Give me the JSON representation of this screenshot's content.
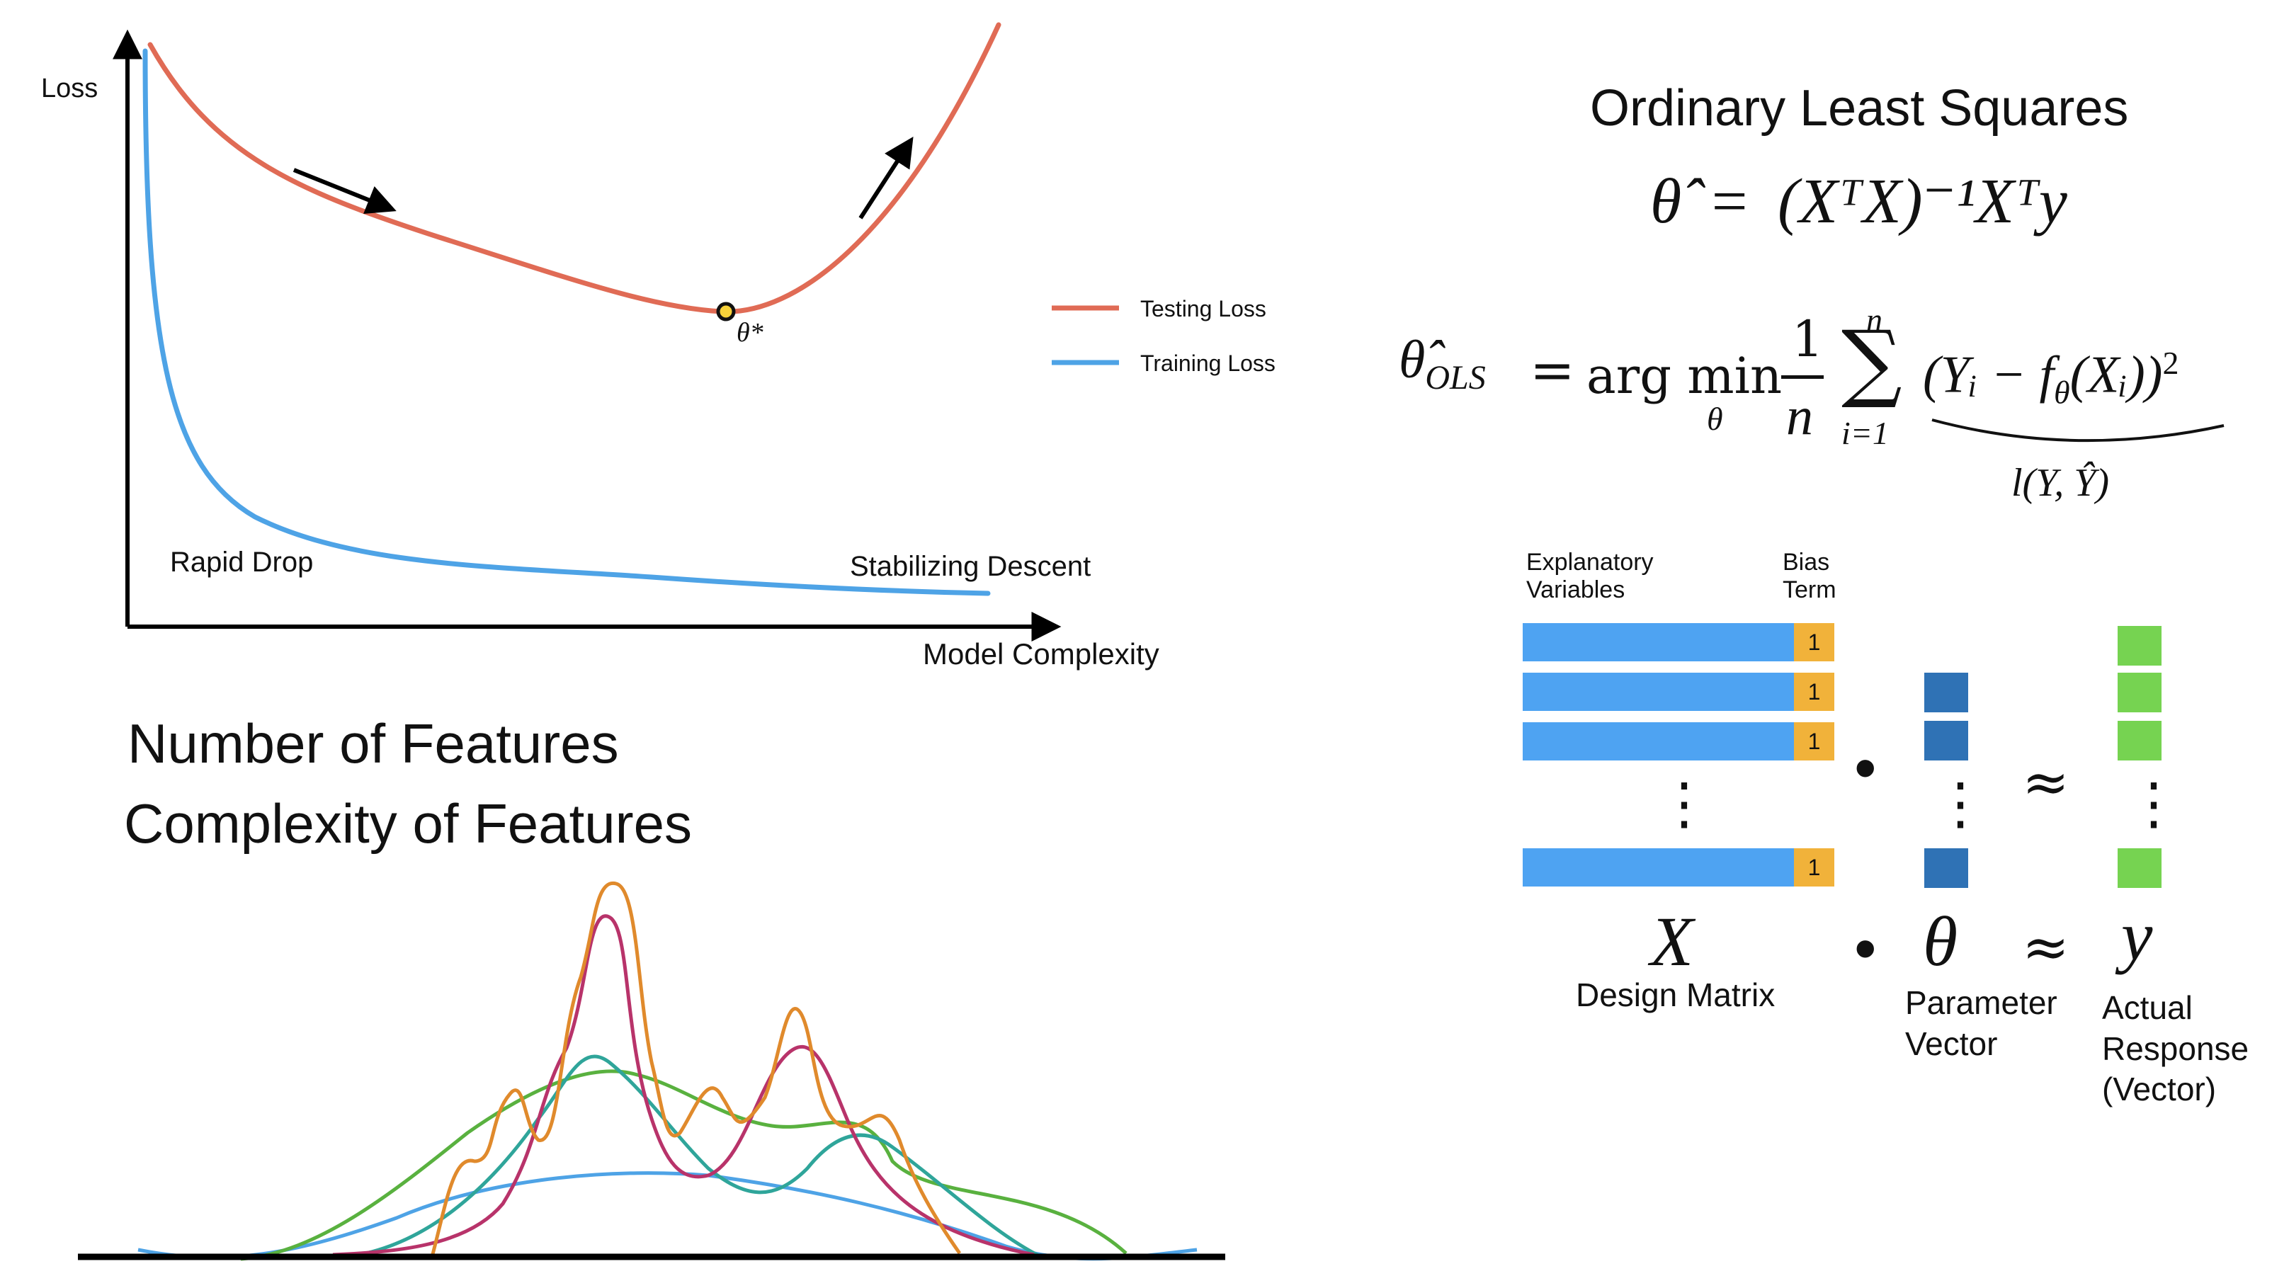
{
  "loss_chart": {
    "y_axis_label": "Loss",
    "x_axis_label": "Model Complexity",
    "optimum_label": "θ*",
    "annotation_left": "Rapid Drop",
    "annotation_right": "Stabilizing Descent",
    "legend": [
      {
        "label": "Testing Loss",
        "color": "#e06b55"
      },
      {
        "label": "Training Loss",
        "color": "#4ea3e6"
      }
    ]
  },
  "features": {
    "line1": "Number of Features",
    "line2": "Complexity of Features",
    "curve_colors": [
      "#4ea3e6",
      "#59b13f",
      "#2fa59a",
      "#b8336a",
      "#e08a2c"
    ]
  },
  "ols": {
    "title": "Ordinary Least Squares",
    "eq1": {
      "lhs": "θ̂",
      "eq": "=",
      "rhs": "(XᵀX)⁻¹Xᵀy"
    },
    "eq2": {
      "lhs": "θ̂",
      "lhs_sub": "OLS",
      "eq": "=",
      "op": "arg min",
      "op_sub": "θ",
      "frac_num": "1",
      "frac_den": "n",
      "sum": "∑",
      "sum_top": "n",
      "sum_bottom": "i=1",
      "summand": "(Yᵢ − f",
      "summand_sub": "θ",
      "summand_tail": "(Xᵢ))",
      "summand_sup": "2",
      "brace_label": "l(Y, Ŷ)"
    }
  },
  "matrix": {
    "header_left": [
      "Explanatory",
      "Variables"
    ],
    "header_right": [
      "Bias",
      "Term"
    ],
    "bias_value": "1",
    "vdots": "⋮",
    "dot": "•",
    "approx": "≈",
    "x_symbol": "X",
    "theta_symbol": "θ",
    "y_symbol": "y",
    "x_caption": "Design Matrix",
    "theta_caption": [
      "Parameter",
      "Vector"
    ],
    "y_caption": [
      "Actual",
      "Response",
      "(Vector)"
    ],
    "colors": {
      "row": "#4ea3f2",
      "bias": "#f1b23a",
      "theta": "#2f72b5",
      "y": "#76d351"
    }
  }
}
